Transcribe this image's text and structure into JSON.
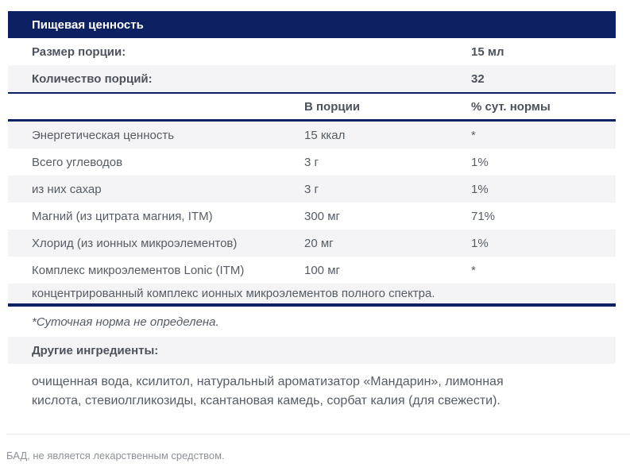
{
  "panel": {
    "title": "Пищевая ценность",
    "serving_rows": [
      {
        "label": "Размер порции:",
        "value": "15 мл"
      },
      {
        "label": "Количество порций:",
        "value": "32"
      }
    ],
    "columns": {
      "amount": "В порции",
      "dv": "% сут. нормы"
    },
    "nutrient_rows": [
      {
        "label": "Энергетическая ценность",
        "amount": "15 ккал",
        "dv": "*"
      },
      {
        "label": "Всего углеводов",
        "amount": "3 г",
        "dv": "1%"
      },
      {
        "label": "из них сахар",
        "amount": "3 г",
        "dv": "1%"
      },
      {
        "label": "Магний (из цитрата магния, ITM)",
        "amount": "300 мг",
        "dv": "71%"
      },
      {
        "label": "Хлорид (из ионных микроэлементов)",
        "amount": "20 мг",
        "dv": "1%"
      },
      {
        "label": "Комплекс микроэлементов Lonic (ITM)",
        "amount": "100 мг",
        "dv": "*"
      }
    ],
    "complex_note": "концентрированный комплекс ионных микроэлементов полного спектра.",
    "dv_footnote": "*Суточная норма не определена.",
    "other_ingredients_label": "Другие ингредиенты:",
    "other_ingredients_text": "очищенная вода, ксилитол, натуральный ароматизатор «Мандарин», лимонная кислота, стевиолгликозиды, ксантановая камедь, сорбат калия (для свежести)."
  },
  "disclaimer": "БАД, не является лекарственным средством.",
  "colors": {
    "navy": "#0d2162",
    "row_alt": "#f4f4f6",
    "text": "#565c66",
    "bold_text": "#4d535d",
    "muted": "#8d9298"
  }
}
